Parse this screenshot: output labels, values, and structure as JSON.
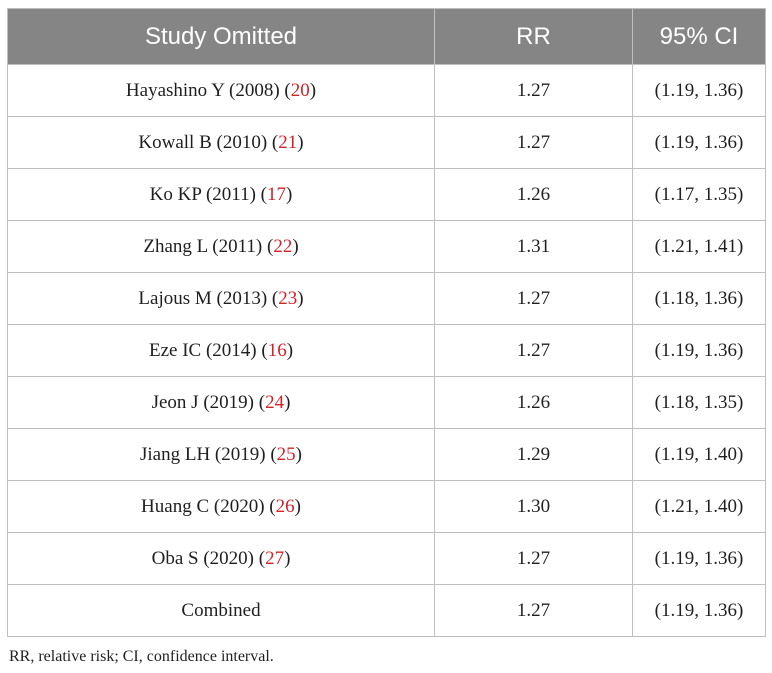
{
  "table": {
    "headers": [
      "Study Omitted",
      "RR",
      "95% CI"
    ],
    "rows": [
      {
        "study": "Hayashino Y (2008) (",
        "ref": "20",
        "close": ")",
        "rr": "1.27",
        "ci": "(1.19, 1.36)"
      },
      {
        "study": "Kowall B (2010) (",
        "ref": "21",
        "close": ")",
        "rr": "1.27",
        "ci": "(1.19, 1.36)"
      },
      {
        "study": "Ko KP (2011) (",
        "ref": "17",
        "close": ")",
        "rr": "1.26",
        "ci": "(1.17, 1.35)"
      },
      {
        "study": "Zhang L (2011) (",
        "ref": "22",
        "close": ")",
        "rr": "1.31",
        "ci": "(1.21, 1.41)"
      },
      {
        "study": "Lajous M (2013) (",
        "ref": "23",
        "close": ")",
        "rr": "1.27",
        "ci": "(1.18, 1.36)"
      },
      {
        "study": "Eze IC (2014) (",
        "ref": "16",
        "close": ")",
        "rr": "1.27",
        "ci": "(1.19, 1.36)"
      },
      {
        "study": "Jeon J (2019) (",
        "ref": "24",
        "close": ")",
        "rr": "1.26",
        "ci": "(1.18, 1.35)"
      },
      {
        "study": "Jiang LH (2019) (",
        "ref": "25",
        "close": ")",
        "rr": "1.29",
        "ci": "(1.19, 1.40)"
      },
      {
        "study": "Huang C (2020) (",
        "ref": "26",
        "close": ")",
        "rr": "1.30",
        "ci": "(1.21, 1.40)"
      },
      {
        "study": "Oba S (2020) (",
        "ref": "27",
        "close": ")",
        "rr": "1.27",
        "ci": "(1.19, 1.36)"
      },
      {
        "study": "Combined",
        "ref": "",
        "close": "",
        "rr": "1.27",
        "ci": "(1.19, 1.36)"
      }
    ]
  },
  "footnote": "RR, relative risk; CI, confidence interval.",
  "colors": {
    "header_bg": "#858585",
    "header_text": "#ffffff",
    "reference_link": "#d2232a",
    "border": "#bfbfbf"
  }
}
